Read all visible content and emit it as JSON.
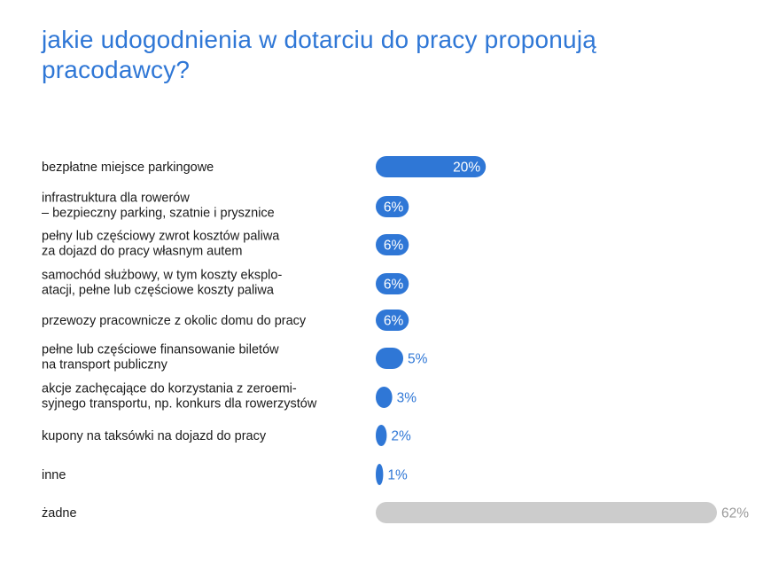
{
  "chart_data": {
    "type": "bar",
    "orientation": "horizontal",
    "title": "jakie udogodnienia w dotarciu do pracy proponują pracodawcy?",
    "unit": "%",
    "xlim": [
      0,
      62
    ],
    "categories": [
      [
        "bezpłatne miejsce parkingowe"
      ],
      [
        "infrastruktura dla rowerów",
        "– bezpieczny parking, szatnie i prysznice"
      ],
      [
        "pełny lub częściowy zwrot kosztów paliwa",
        "za dojazd do pracy własnym autem"
      ],
      [
        "samochód służbowy, w tym koszty eksplo-",
        "atacji, pełne lub częściowe koszty paliwa"
      ],
      [
        "przewozy pracownicze z okolic domu do pracy"
      ],
      [
        "pełne lub częściowe finansowanie biletów",
        "na transport publiczny"
      ],
      [
        "akcje zachęcające do korzystania z zeroemi-",
        "syjnego transportu, np. konkurs dla rowerzystów"
      ],
      [
        "kupony na taksówki na dojazd do pracy"
      ],
      [
        "inne"
      ],
      [
        "żadne"
      ]
    ],
    "values": [
      20,
      6,
      6,
      6,
      6,
      5,
      3,
      2,
      1,
      62
    ],
    "value_labels": [
      "20%",
      "6%",
      "6%",
      "6%",
      "6%",
      "5%",
      "3%",
      "2%",
      "1%",
      "62%"
    ],
    "colors": {
      "primary": "#2f77d6",
      "none_option": "#cccccc",
      "label_inside": "#ffffff",
      "label_outside_primary": "#2f77d6",
      "label_outside_none": "#9a9a9a"
    },
    "grid": false,
    "legend": "none"
  }
}
